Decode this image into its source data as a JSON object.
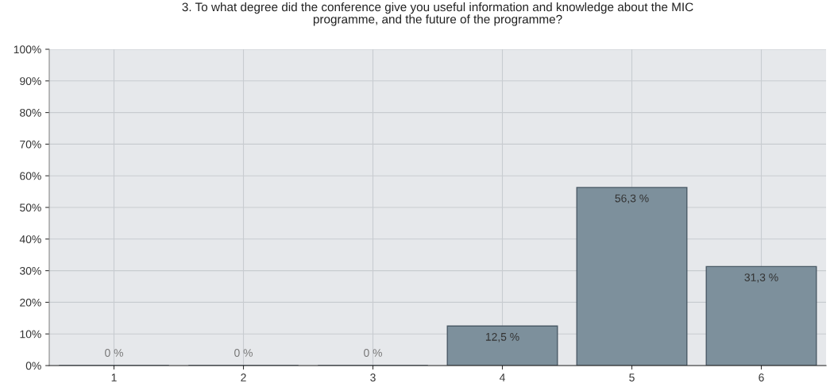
{
  "chart_data": {
    "type": "bar",
    "title": "3. To what degree did the conference give you useful information and knowledge about the MIC\nprogramme, and the future of the programme?",
    "categories": [
      "1",
      "2",
      "3",
      "4",
      "5",
      "6"
    ],
    "values": [
      0,
      0,
      0,
      12.5,
      56.3,
      31.3
    ],
    "value_labels": [
      "0 %",
      "0 %",
      "0 %",
      "12,5 %",
      "56,3 %",
      "31,3 %"
    ],
    "color": "#7d909c",
    "ylim": [
      0,
      100
    ],
    "yticks": [
      {
        "value": 0,
        "label": "0%"
      },
      {
        "value": 10,
        "label": "10%"
      },
      {
        "value": 20,
        "label": "20%"
      },
      {
        "value": 30,
        "label": "30%"
      },
      {
        "value": 40,
        "label": "40%"
      },
      {
        "value": 50,
        "label": "50%"
      },
      {
        "value": 60,
        "label": "60%"
      },
      {
        "value": 70,
        "label": "70%"
      },
      {
        "value": 80,
        "label": "80%"
      },
      {
        "value": 90,
        "label": "90%"
      },
      {
        "value": 100,
        "label": "100%"
      }
    ],
    "grid": true
  }
}
